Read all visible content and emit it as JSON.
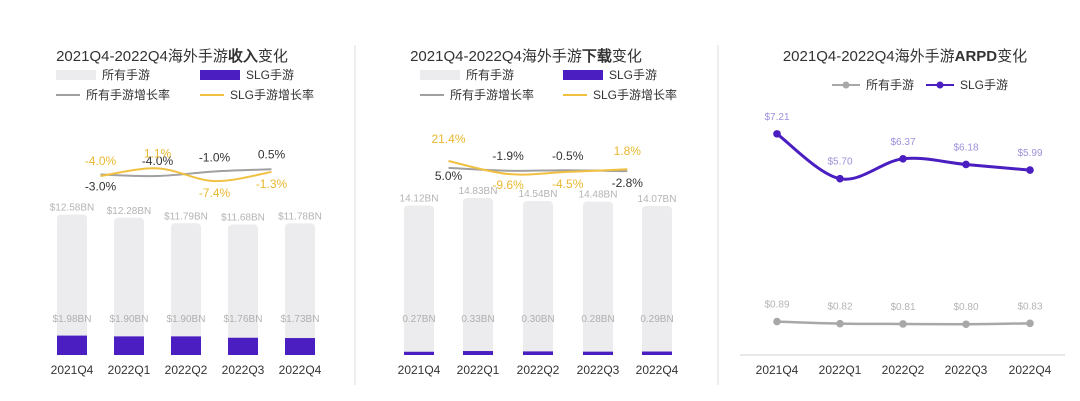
{
  "charts": [
    {
      "title_pre": "2021Q4-2022Q4海外手游",
      "title_bold": "收入",
      "title_post": "变化",
      "legend": {
        "total": "所有手游",
        "slg": "SLG手游",
        "total_growth": "所有手游增长率",
        "slg_growth": "SLG手游增长率"
      }
    },
    {
      "title_pre": "2021Q4-2022Q4海外手游",
      "title_bold": "下载",
      "title_post": "变化",
      "legend": {
        "total": "所有手游",
        "slg": "SLG手游",
        "total_growth": "所有手游增长率",
        "slg_growth": "SLG手游增长率"
      }
    },
    {
      "title_pre": "2021Q4-2022Q4海外手游",
      "title_bold": "ARPD",
      "title_post": "变化",
      "legend": {
        "total": "所有手游",
        "slg": "SLG手游"
      }
    }
  ],
  "colors": {
    "total_bar": "#ececee",
    "slg_bar": "#4a1ec0",
    "total_growth": "#a0a0a0",
    "slg_growth": "#f0c040",
    "arpd_slg": "#4a1ec0",
    "arpd_total": "#a8a8a8",
    "divider": "#dddddd"
  },
  "chart_data": [
    {
      "type": "bar",
      "categories": [
        "2021Q4",
        "2022Q1",
        "2022Q2",
        "2022Q3",
        "2022Q4"
      ],
      "series": [
        {
          "name": "所有手游",
          "values": [
            12.58,
            12.28,
            11.79,
            11.68,
            11.78
          ],
          "labels": [
            "$12.58BN",
            "$12.28BN",
            "$11.79BN",
            "$11.68BN",
            "$11.78BN"
          ]
        },
        {
          "name": "SLG手游",
          "values": [
            1.98,
            1.9,
            1.9,
            1.76,
            1.73
          ],
          "labels": [
            "$1.98BN",
            "$1.90BN",
            "$1.90BN",
            "$1.76BN",
            "$1.73BN"
          ]
        }
      ],
      "growth": [
        {
          "name": "所有手游增长率",
          "values": [
            -3.0,
            -4.0,
            -1.0,
            0.5
          ],
          "labels": [
            "-3.0%",
            "-4.0%",
            "-1.0%",
            "0.5%"
          ]
        },
        {
          "name": "SLG手游增长率",
          "values": [
            -4.0,
            1.1,
            -7.4,
            -1.3
          ],
          "labels": [
            "-4.0%",
            "1.1%",
            "-7.4%",
            "-1.3%"
          ]
        }
      ]
    },
    {
      "type": "bar",
      "categories": [
        "2021Q4",
        "2022Q1",
        "2022Q2",
        "2022Q3",
        "2022Q4"
      ],
      "series": [
        {
          "name": "所有手游",
          "values": [
            14.12,
            14.83,
            14.54,
            14.48,
            14.07
          ],
          "labels": [
            "14.12BN",
            "14.83BN",
            "14.54BN",
            "14.48BN",
            "14.07BN"
          ]
        },
        {
          "name": "SLG手游",
          "values": [
            0.27,
            0.33,
            0.3,
            0.28,
            0.29
          ],
          "labels": [
            "0.27BN",
            "0.33BN",
            "0.30BN",
            "0.28BN",
            "0.29BN"
          ]
        }
      ],
      "growth": [
        {
          "name": "所有手游增长率",
          "values": [
            5.0,
            -1.9,
            -0.5,
            -2.8
          ],
          "labels": [
            "5.0%",
            "-1.9%",
            "-0.5%",
            "-2.8%"
          ]
        },
        {
          "name": "SLG手游增长率",
          "values": [
            21.4,
            -9.6,
            -4.5,
            1.8
          ],
          "labels": [
            "21.4%",
            "-9.6%",
            "-4.5%",
            "1.8%"
          ]
        }
      ]
    },
    {
      "type": "line",
      "categories": [
        "2021Q4",
        "2022Q1",
        "2022Q2",
        "2022Q3",
        "2022Q4"
      ],
      "series": [
        {
          "name": "SLG手游",
          "values": [
            7.21,
            5.7,
            6.37,
            6.18,
            5.99
          ],
          "labels": [
            "$7.21",
            "$5.70",
            "$6.37",
            "$6.18",
            "$5.99"
          ]
        },
        {
          "name": "所有手游",
          "values": [
            0.89,
            0.82,
            0.81,
            0.8,
            0.83
          ],
          "labels": [
            "$0.89",
            "$0.82",
            "$0.81",
            "$0.80",
            "$0.83"
          ]
        }
      ]
    }
  ]
}
